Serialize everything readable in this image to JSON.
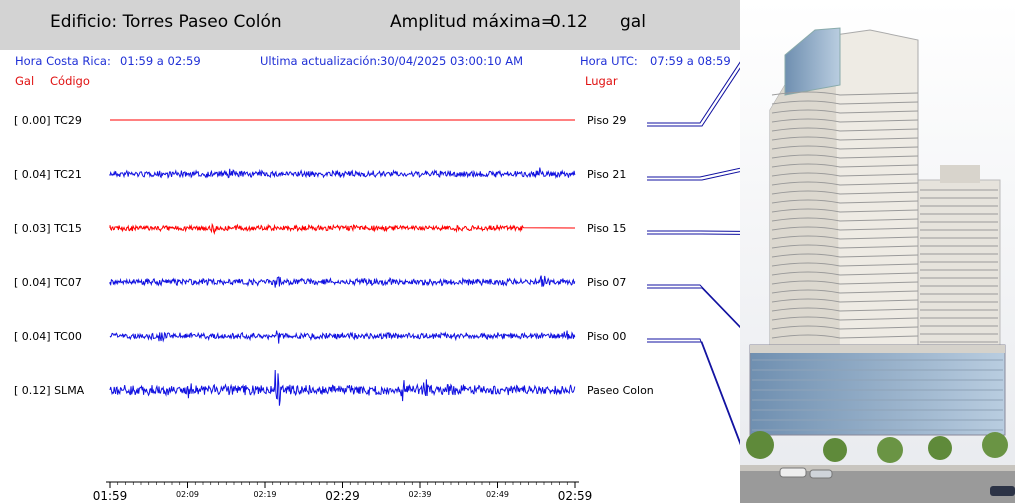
{
  "header": {
    "building_label": "Edificio: Torres Paseo Colón",
    "amplitude_label": "Amplitud máxima=",
    "amplitude_value": "0.12",
    "amplitude_unit": "gal"
  },
  "info": {
    "cr_time_label": "Hora Costa Rica:",
    "cr_time_range": "01:59 a 02:59",
    "update_label": "Ultima actualización:",
    "update_value": "30/04/2025 03:00:10 AM",
    "utc_label": "Hora UTC:",
    "utc_range": "07:59 a 08:59"
  },
  "columns": {
    "gal": "Gal",
    "code": "Código",
    "place": "Lugar"
  },
  "colors": {
    "blue": "#1010e0",
    "red": "#ff0000",
    "header_bg": "#d3d3d3",
    "label_blue": "#1f2fd6"
  },
  "chart_data": {
    "type": "line",
    "x_ticks": [
      {
        "label": "01:59",
        "major": true
      },
      {
        "label": "02:09",
        "major": false
      },
      {
        "label": "02:19",
        "major": false
      },
      {
        "label": "02:29",
        "major": true
      },
      {
        "label": "02:39",
        "major": false
      },
      {
        "label": "02:49",
        "major": false
      },
      {
        "label": "02:59",
        "major": true
      }
    ],
    "x_range": [
      "01:59",
      "02:59"
    ],
    "grid": false,
    "series": [
      {
        "amplitude": "[  0.00]",
        "code": "TC29",
        "place": "Piso 29",
        "color": "#ff0000",
        "max_gal": 0.0,
        "spikes": []
      },
      {
        "amplitude": "[  0.04]",
        "code": "TC21",
        "place": "Piso 21",
        "color": "#1010e0",
        "max_gal": 0.04,
        "spikes": [
          0.26,
          0.92
        ]
      },
      {
        "amplitude": "[  0.03]",
        "code": "TC15",
        "place": "Piso 15",
        "color": "#ff0000",
        "max_gal": 0.03,
        "spikes": [
          0.22
        ],
        "ends_at": 0.89
      },
      {
        "amplitude": "[  0.04]",
        "code": "TC07",
        "place": "Piso 07",
        "color": "#1010e0",
        "max_gal": 0.04,
        "spikes": [
          0.18,
          0.36,
          0.6,
          0.93
        ]
      },
      {
        "amplitude": "[  0.04]",
        "code": "TC00",
        "place": "Piso 00",
        "color": "#1010e0",
        "max_gal": 0.04,
        "spikes": [
          0.11,
          0.36,
          0.98
        ]
      },
      {
        "amplitude": "[  0.12]",
        "code": "SLMA",
        "place": "Paseo Colon",
        "color": "#1010e0",
        "max_gal": 0.12,
        "spikes": [
          0.17,
          0.36,
          0.63,
          0.68
        ]
      }
    ]
  }
}
